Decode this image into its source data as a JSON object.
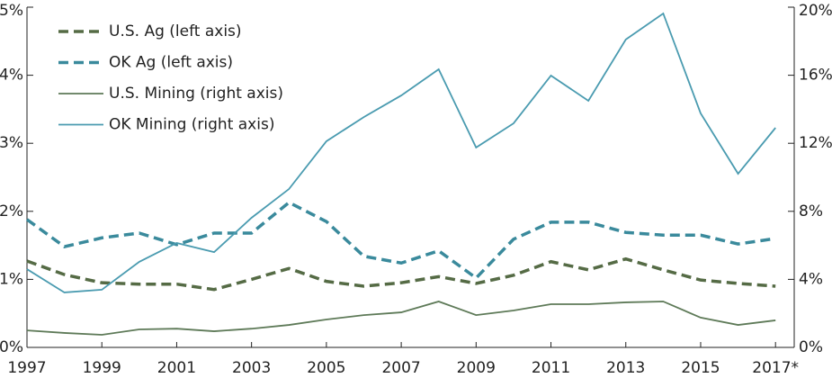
{
  "chart_data": {
    "type": "line",
    "x": [
      1997,
      1998,
      1999,
      2000,
      2001,
      2002,
      2003,
      2004,
      2005,
      2006,
      2007,
      2008,
      2009,
      2010,
      2011,
      2012,
      2013,
      2014,
      2015,
      2016,
      2017
    ],
    "xlim": [
      1997,
      2017.5
    ],
    "xticks": [
      1997,
      1999,
      2001,
      2003,
      2005,
      2007,
      2009,
      2011,
      2013,
      2015,
      {
        "value": 2017,
        "label": "2017*"
      }
    ],
    "ylim": [
      0,
      5
    ],
    "yticks": [
      {
        "value": 0,
        "label": "0%"
      },
      {
        "value": 1,
        "label": "1%"
      },
      {
        "value": 2,
        "label": "2%"
      },
      {
        "value": 3,
        "label": "3%"
      },
      {
        "value": 4,
        "label": "4%"
      },
      {
        "value": 5,
        "label": "5%"
      }
    ],
    "y2lim": [
      0,
      20
    ],
    "y2ticks": [
      {
        "value": 0,
        "label": "0%"
      },
      {
        "value": 4,
        "label": "4%"
      },
      {
        "value": 8,
        "label": "8%"
      },
      {
        "value": 12,
        "label": "12%"
      },
      {
        "value": 16,
        "label": "16%"
      },
      {
        "value": 20,
        "label": "20%"
      }
    ],
    "legend": "upper left",
    "series": [
      {
        "name": "U.S. Ag (left axis)",
        "color": "#556b45",
        "dashed": true,
        "values": [
          1.27,
          1.07,
          0.95,
          0.93,
          0.93,
          0.85,
          1.0,
          1.16,
          0.97,
          0.9,
          0.95,
          1.04,
          0.94,
          1.06,
          1.26,
          1.14,
          1.3,
          1.14,
          0.99,
          0.94,
          0.9
        ]
      },
      {
        "name": "OK Ag (left axis)",
        "color": "#3a8a9c",
        "dashed": true,
        "values": [
          1.88,
          1.48,
          1.61,
          1.68,
          1.51,
          1.68,
          1.68,
          2.13,
          1.85,
          1.34,
          1.24,
          1.42,
          1.02,
          1.59,
          1.84,
          1.84,
          1.69,
          1.65,
          1.65,
          1.52,
          1.6
        ]
      },
      {
        "name": "U.S. Mining (right axis)",
        "color": "#5e7a58",
        "dashed": false,
        "axis": "y2",
        "values": [
          1.0,
          0.85,
          0.74,
          1.06,
          1.1,
          0.95,
          1.1,
          1.32,
          1.64,
          1.9,
          2.06,
          2.7,
          1.9,
          2.17,
          2.54,
          2.54,
          2.65,
          2.7,
          1.75,
          1.32,
          1.59
        ]
      },
      {
        "name": "OK Mining (right axis)",
        "color": "#4a9bb0",
        "dashed": false,
        "axis": "y2",
        "values": [
          4.6,
          3.23,
          3.39,
          5.03,
          6.14,
          5.6,
          7.62,
          9.31,
          12.12,
          13.54,
          14.81,
          16.35,
          11.75,
          13.17,
          15.98,
          14.5,
          18.1,
          19.63,
          13.76,
          10.21,
          12.91
        ]
      }
    ]
  }
}
